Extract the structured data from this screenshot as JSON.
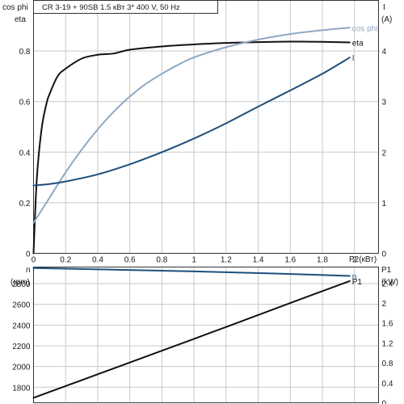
{
  "chart_data": [
    {
      "type": "line",
      "title": "CR 3-19 + 90SB    1.5 кВт   3* 400 V, 50 Hz",
      "xlabel": "P2(кВт)",
      "ylabel_left": [
        "cos phi",
        "eta"
      ],
      "ylabel_right": [
        "I",
        "(A)"
      ],
      "xlim": [
        0,
        2.15
      ],
      "ylim_left": [
        0,
        1.0
      ],
      "ylim_right": [
        0,
        5
      ],
      "x_ticks": [
        "0",
        "0.2",
        "0.4",
        "0.6",
        "0.8",
        "1",
        "1.2",
        "1.4",
        "1.6",
        "1.8",
        "2"
      ],
      "y_ticks_left": [
        "0",
        "0.2",
        "0.4",
        "0.6",
        "0.8"
      ],
      "y_ticks_right": [
        "0",
        "1",
        "2",
        "3",
        "4"
      ],
      "grid": true,
      "series": [
        {
          "name": "eta",
          "axis": "left",
          "color": "#111111",
          "x": [
            0.0,
            0.02,
            0.05,
            0.08,
            0.1,
            0.15,
            0.2,
            0.3,
            0.4,
            0.5,
            0.6,
            0.8,
            1.0,
            1.2,
            1.4,
            1.6,
            1.8,
            1.97
          ],
          "y": [
            0.0,
            0.29,
            0.49,
            0.59,
            0.63,
            0.7,
            0.73,
            0.77,
            0.785,
            0.79,
            0.805,
            0.818,
            0.826,
            0.832,
            0.835,
            0.837,
            0.836,
            0.834
          ]
        },
        {
          "name": "cos phi",
          "axis": "left",
          "color": "#8fa9c2",
          "x": [
            0.0,
            0.05,
            0.1,
            0.2,
            0.3,
            0.4,
            0.5,
            0.6,
            0.7,
            0.8,
            0.9,
            1.0,
            1.2,
            1.4,
            1.6,
            1.8,
            1.97
          ],
          "y": [
            0.12,
            0.17,
            0.22,
            0.32,
            0.41,
            0.49,
            0.56,
            0.62,
            0.67,
            0.71,
            0.745,
            0.775,
            0.815,
            0.845,
            0.867,
            0.882,
            0.892
          ]
        },
        {
          "name": "I",
          "axis": "right",
          "color": "#1d4f7c",
          "x": [
            0.0,
            0.1,
            0.2,
            0.4,
            0.6,
            0.8,
            1.0,
            1.2,
            1.4,
            1.6,
            1.8,
            1.97
          ],
          "y": [
            1.34,
            1.37,
            1.42,
            1.56,
            1.76,
            2.0,
            2.27,
            2.57,
            2.9,
            3.22,
            3.55,
            3.87
          ]
        }
      ]
    },
    {
      "type": "line",
      "xlabel": "",
      "ylabel_left": [
        "n",
        "(rpm)"
      ],
      "ylabel_right": [
        "P1",
        "(kW)"
      ],
      "xlim": [
        0,
        2.15
      ],
      "ylim_left": [
        1650,
        2960
      ],
      "ylim_right": [
        0,
        2.72
      ],
      "y_ticks_left": [
        "1800",
        "2000",
        "2200",
        "2400",
        "2600",
        "2800"
      ],
      "y_ticks_right": [
        "0",
        "0.4",
        "0.8",
        "1.2",
        "1.6",
        "2",
        "2.4"
      ],
      "grid": true,
      "series": [
        {
          "name": "n",
          "axis": "left",
          "color": "#1d4f7c",
          "x": [
            0.0,
            0.5,
            1.0,
            1.5,
            1.97
          ],
          "y": [
            2950,
            2935,
            2918,
            2898,
            2874
          ]
        },
        {
          "name": "P1",
          "axis": "right",
          "color": "#111111",
          "x": [
            0.0,
            0.5,
            1.0,
            1.5,
            1.97
          ],
          "y": [
            0.1,
            0.69,
            1.28,
            1.88,
            2.44
          ]
        }
      ]
    }
  ]
}
